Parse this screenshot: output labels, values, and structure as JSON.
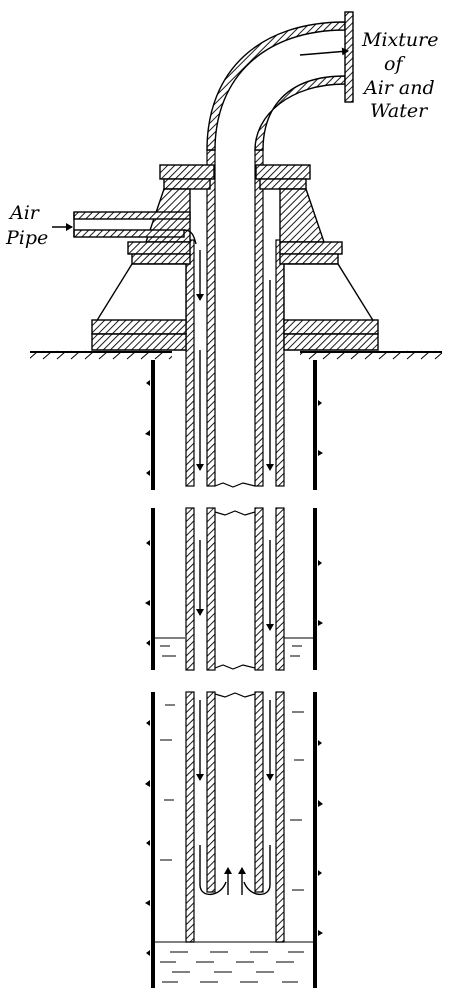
{
  "labels": {
    "outlet_line1": "Mixture",
    "outlet_line2": "of",
    "outlet_line3": "Air and",
    "outlet_line4": "Water",
    "inlet_line1": "Air",
    "inlet_line2": "Pipe"
  },
  "colors": {
    "ink": "#000000",
    "paper": "#ffffff"
  }
}
